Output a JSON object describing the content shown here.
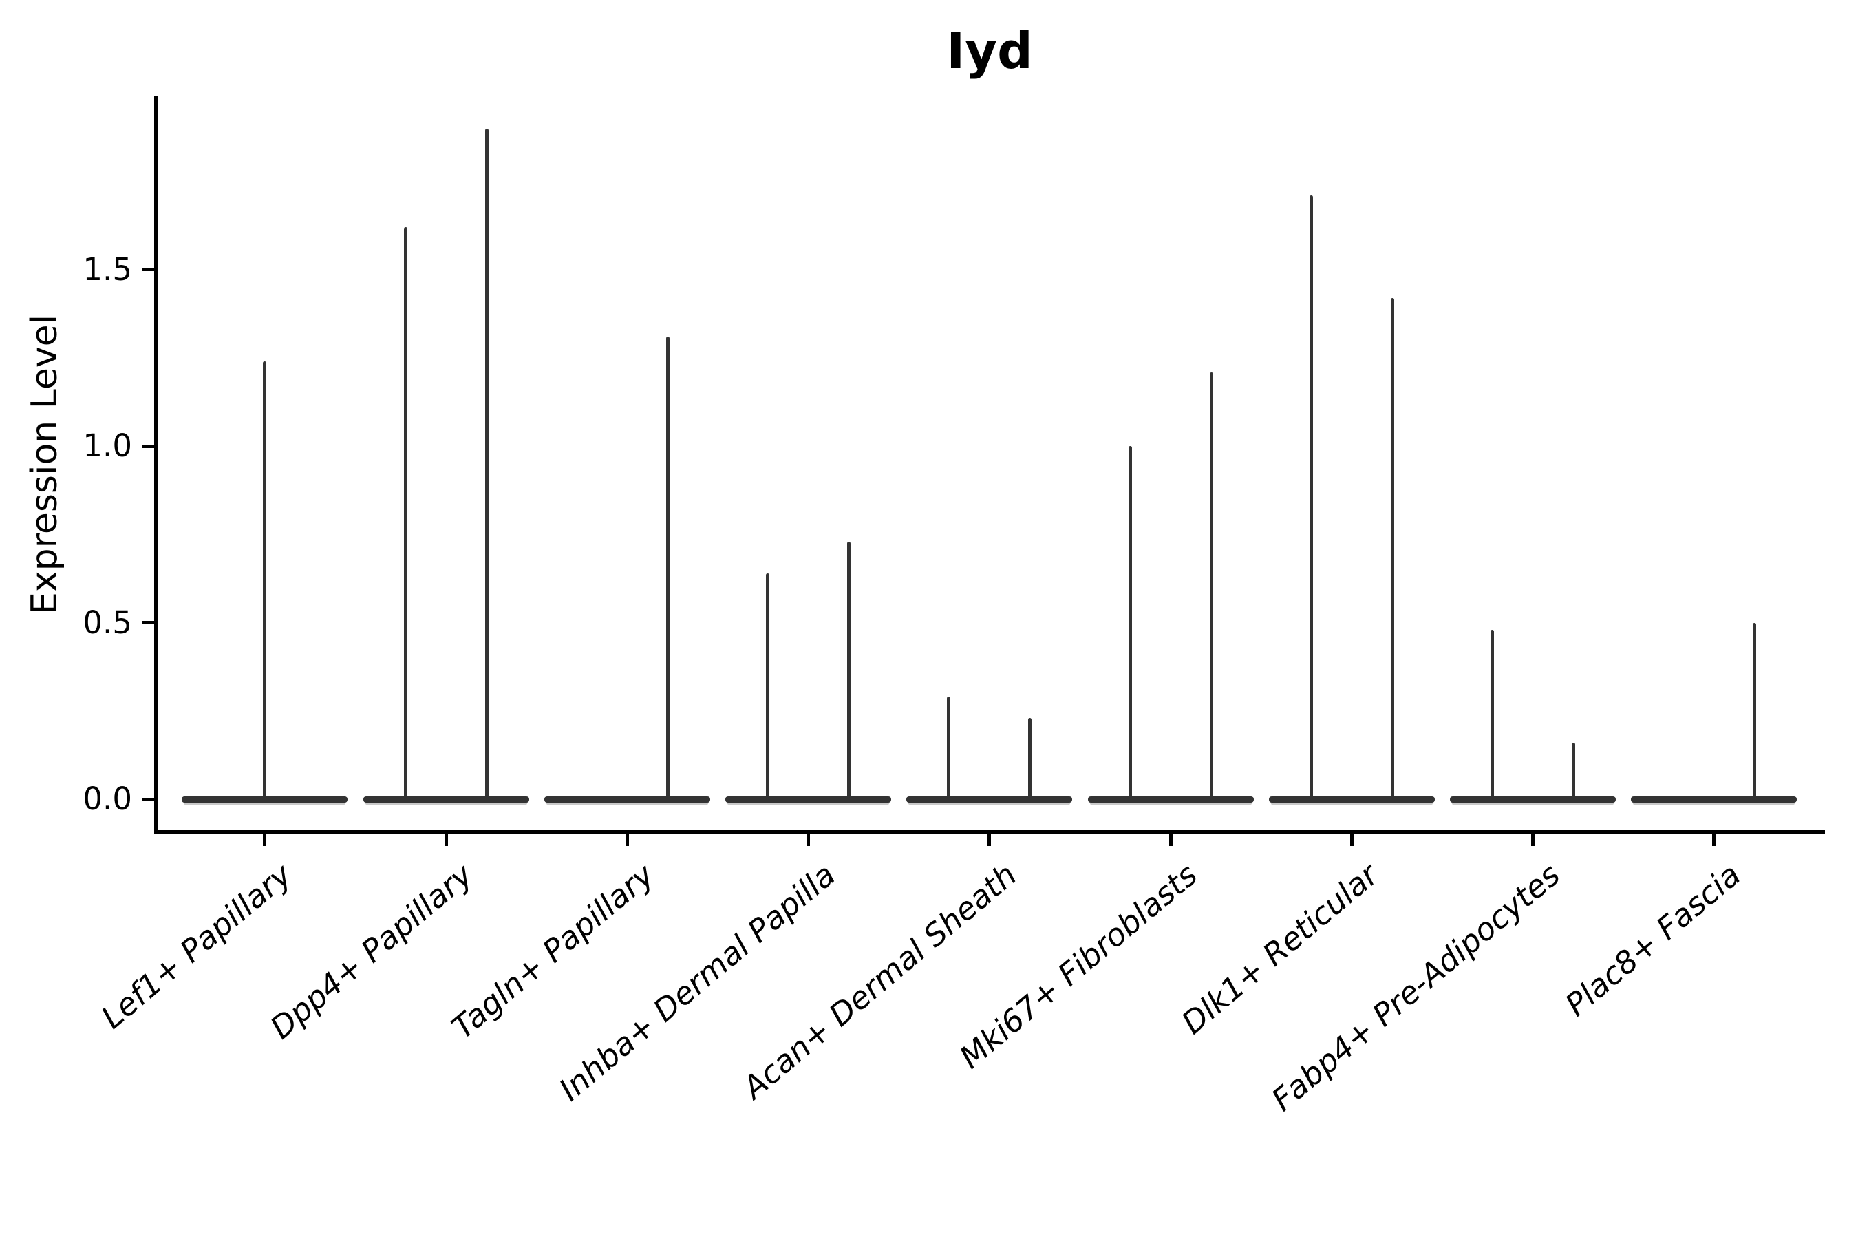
{
  "figure": {
    "background": "#ffffff"
  },
  "colors": {
    "ink": "#000000",
    "violin": "#333333",
    "violin_fill": "#c9c9c9"
  },
  "chart_data": {
    "type": "violin",
    "title": "Iyd",
    "xlabel": "",
    "ylabel": "Expression Level",
    "grid": false,
    "legend": null,
    "yticks": [
      "0.0",
      "0.5",
      "1.0",
      "1.5"
    ],
    "ytick_values": [
      0.0,
      0.5,
      1.0,
      1.5
    ],
    "ylim": [
      -0.09,
      1.99
    ],
    "baseline_value": 0.0,
    "categories": [
      "Lef1+ Papillary",
      "Dpp4+ Papillary",
      "Tagln+ Papillary",
      "Inhba+ Dermal Papilla",
      "Acan+ Dermal Sheath",
      "Mki67+ Fibroblasts",
      "Dlk1+ Reticular",
      "Fabp4+ Pre-Adipocytes",
      "Plac8+ Fascia"
    ],
    "violins": [
      {
        "category": "Lef1+ Papillary",
        "spikes": [
          {
            "position": "center",
            "max": 1.24
          }
        ]
      },
      {
        "category": "Dpp4+ Papillary",
        "spikes": [
          {
            "position": "left",
            "max": 1.62
          },
          {
            "position": "right",
            "max": 1.9
          }
        ]
      },
      {
        "category": "Tagln+ Papillary",
        "spikes": [
          {
            "position": "right",
            "max": 1.31
          }
        ]
      },
      {
        "category": "Inhba+ Dermal Papilla",
        "spikes": [
          {
            "position": "left",
            "max": 0.64
          },
          {
            "position": "right",
            "max": 0.73
          }
        ]
      },
      {
        "category": "Acan+ Dermal Sheath",
        "spikes": [
          {
            "position": "left",
            "max": 0.29
          },
          {
            "position": "right",
            "max": 0.23
          }
        ]
      },
      {
        "category": "Mki67+ Fibroblasts",
        "spikes": [
          {
            "position": "left",
            "max": 1.0
          },
          {
            "position": "right",
            "max": 1.21
          }
        ]
      },
      {
        "category": "Dlk1+ Reticular",
        "spikes": [
          {
            "position": "left",
            "max": 1.71
          },
          {
            "position": "right",
            "max": 1.42
          }
        ]
      },
      {
        "category": "Fabp4+ Pre-Adipocytes",
        "spikes": [
          {
            "position": "left",
            "max": 0.48
          },
          {
            "position": "right",
            "max": 0.16
          }
        ]
      },
      {
        "category": "Plac8+ Fascia",
        "spikes": [
          {
            "position": "right",
            "max": 0.5
          }
        ]
      }
    ]
  }
}
